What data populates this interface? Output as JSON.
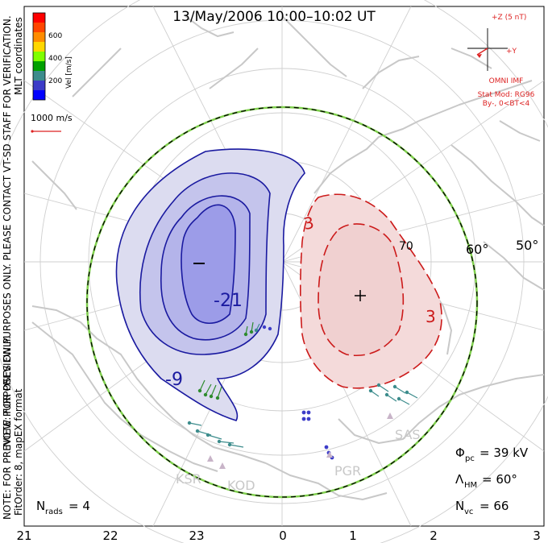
{
  "title": "13/May/2006 10:00–10:02 UT",
  "side_labels": {
    "left_top": "NOTE: FOR PREVIEW PURPOSES ONLY. PLEASE CONTACT VT-SD STAFF FOR VERIFICATION.",
    "left_top2": "MLT coordinates",
    "left_bottom1": "NOTE: FOR PREVIEW PURPOSES ONLY.",
    "left_bottom2": "FitOrder: 8, mapEX format"
  },
  "color_scale": {
    "title": "Vel [m/s]",
    "ticks": [
      "600",
      "400",
      "200"
    ],
    "colors": [
      "#ff0000",
      "#ff4500",
      "#ff8c00",
      "#ffd700",
      "#7fff00",
      "#00a000",
      "#3c8c8c",
      "#3c3cc8",
      "#0000ff"
    ]
  },
  "ref_vector": {
    "label": "1000 m/s"
  },
  "imf": {
    "z_label": "+Z (5 nT)",
    "y_label": "+Y",
    "source": "OMNI IMF",
    "model": "Stat Mod: RG96",
    "condition": "By-, 0<BT<4"
  },
  "contours": {
    "negative": [
      "-21",
      "-9"
    ],
    "positive": [
      "3",
      "3"
    ],
    "min_marker": "−",
    "max_marker": "+"
  },
  "lat_labels": [
    "60°",
    "50°"
  ],
  "radars": [
    "KSR",
    "KOD",
    "PGR",
    "SAS"
  ],
  "stats": {
    "phi_pc": {
      "symbol": "Φ",
      "sub": "pc",
      "value": "= 39 kV"
    },
    "lambda_hm": {
      "symbol": "Λ",
      "sub": "HM",
      "value": "= 60°"
    },
    "n_vc": {
      "symbol": "N",
      "sub": "vc",
      "value": "= 66"
    },
    "n_rads": {
      "symbol": "N",
      "sub": "rads",
      "value": "= 4"
    }
  },
  "mlt_axis": [
    "21",
    "22",
    "23",
    "0",
    "1",
    "2",
    "3"
  ],
  "colors": {
    "negative_fill": "#dcdcf0",
    "negative_mid": "#c4c4ec",
    "negative_core": "#9c9ce8",
    "negative_line": "#1a1aa0",
    "positive_fill": "#f4dada",
    "positive_line": "#cc1a1a",
    "coast": "#c8c8c8",
    "grid": "#c8c8c8",
    "boundary_green": "#7fd04c",
    "imf": "#dd2222"
  }
}
